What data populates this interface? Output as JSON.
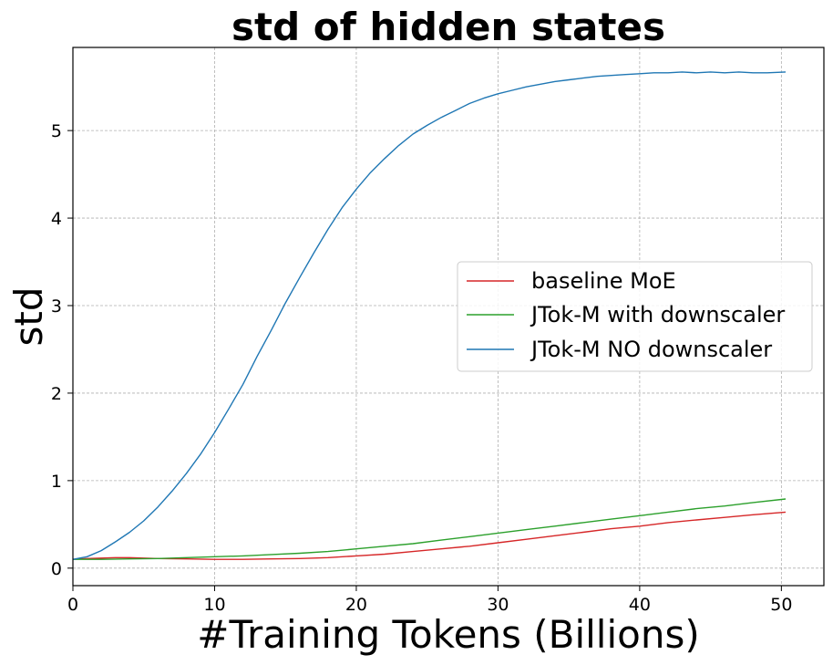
{
  "chart_data": {
    "type": "line",
    "title": "std of hidden states",
    "xlabel": "#Training Tokens (Billions)",
    "ylabel": "std",
    "xlim": [
      0,
      53
    ],
    "ylim": [
      -0.2,
      5.95
    ],
    "xticks": [
      0,
      10,
      20,
      30,
      40,
      50
    ],
    "yticks": [
      0,
      1,
      2,
      3,
      4,
      5
    ],
    "grid": true,
    "legend_position": "center-right",
    "series": [
      {
        "name": "baseline MoE",
        "color": "#d62728",
        "x": [
          0,
          1,
          2,
          3,
          4,
          5,
          6,
          8,
          10,
          12,
          14,
          16,
          18,
          20,
          22,
          24,
          26,
          28,
          30,
          32,
          34,
          36,
          38,
          40,
          42,
          44,
          46,
          48,
          50.3
        ],
        "y": [
          0.1,
          0.11,
          0.115,
          0.12,
          0.12,
          0.115,
          0.11,
          0.105,
          0.1,
          0.1,
          0.105,
          0.11,
          0.12,
          0.14,
          0.16,
          0.19,
          0.22,
          0.25,
          0.29,
          0.33,
          0.37,
          0.41,
          0.45,
          0.48,
          0.52,
          0.55,
          0.58,
          0.61,
          0.64
        ]
      },
      {
        "name": "JTok-M with downscaler",
        "color": "#2ca02c",
        "x": [
          0,
          2,
          4,
          6,
          8,
          10,
          12,
          14,
          16,
          18,
          20,
          22,
          24,
          26,
          28,
          30,
          32,
          34,
          36,
          38,
          40,
          42,
          44,
          46,
          48,
          50.3
        ],
        "y": [
          0.1,
          0.1,
          0.105,
          0.11,
          0.12,
          0.13,
          0.14,
          0.155,
          0.17,
          0.19,
          0.22,
          0.25,
          0.28,
          0.32,
          0.36,
          0.4,
          0.44,
          0.48,
          0.52,
          0.56,
          0.6,
          0.64,
          0.68,
          0.71,
          0.75,
          0.79
        ]
      },
      {
        "name": "JTok-M NO downscaler",
        "color": "#1f77b4",
        "x": [
          0,
          1,
          2,
          3,
          4,
          5,
          6,
          7,
          8,
          9,
          10,
          11,
          12,
          13,
          14,
          15,
          16,
          17,
          18,
          19,
          20,
          21,
          22,
          23,
          24,
          25,
          26,
          27,
          28,
          29,
          30,
          31,
          32,
          33,
          34,
          35,
          36,
          37,
          38,
          39,
          40,
          41,
          42,
          43,
          44,
          45,
          46,
          47,
          48,
          49,
          50.3
        ],
        "y": [
          0.1,
          0.13,
          0.2,
          0.3,
          0.41,
          0.54,
          0.7,
          0.88,
          1.08,
          1.3,
          1.55,
          1.82,
          2.1,
          2.42,
          2.72,
          3.03,
          3.32,
          3.6,
          3.87,
          4.12,
          4.33,
          4.52,
          4.68,
          4.83,
          4.96,
          5.06,
          5.15,
          5.23,
          5.31,
          5.37,
          5.42,
          5.46,
          5.5,
          5.53,
          5.56,
          5.58,
          5.6,
          5.62,
          5.63,
          5.64,
          5.65,
          5.66,
          5.66,
          5.67,
          5.66,
          5.67,
          5.66,
          5.67,
          5.66,
          5.66,
          5.67
        ]
      }
    ]
  }
}
